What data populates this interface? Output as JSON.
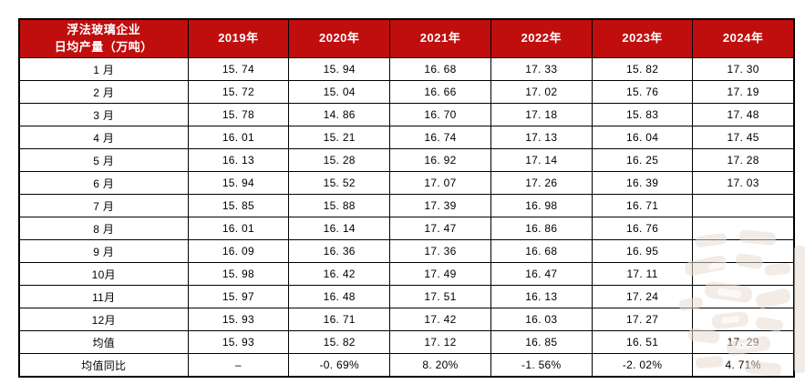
{
  "table": {
    "corner_header_line1": "浮法玻璃企业",
    "corner_header_line2": "日均产量（万吨）",
    "year_headers": [
      "2019年",
      "2020年",
      "2021年",
      "2022年",
      "2023年",
      "2024年"
    ],
    "rows": [
      {
        "label": "1 月",
        "values": [
          "15.74",
          "15.94",
          "16.68",
          "17.33",
          "15.82",
          "17.30"
        ]
      },
      {
        "label": "2 月",
        "values": [
          "15.72",
          "15.04",
          "16.66",
          "17.02",
          "15.76",
          "17.19"
        ]
      },
      {
        "label": "3 月",
        "values": [
          "15.78",
          "14.86",
          "16.70",
          "17.18",
          "15.83",
          "17.48"
        ]
      },
      {
        "label": "4 月",
        "values": [
          "16.01",
          "15.21",
          "16.74",
          "17.13",
          "16.04",
          "17.45"
        ]
      },
      {
        "label": "5 月",
        "values": [
          "16.13",
          "15.28",
          "16.92",
          "17.14",
          "16.25",
          "17.28"
        ]
      },
      {
        "label": "6 月",
        "values": [
          "15.94",
          "15.52",
          "17.07",
          "17.26",
          "16.39",
          "17.03"
        ]
      },
      {
        "label": "7 月",
        "values": [
          "15.85",
          "15.88",
          "17.39",
          "16.98",
          "16.71",
          ""
        ]
      },
      {
        "label": "8 月",
        "values": [
          "16.01",
          "16.14",
          "17.47",
          "16.86",
          "16.76",
          ""
        ]
      },
      {
        "label": "9 月",
        "values": [
          "16.09",
          "16.36",
          "17.36",
          "16.68",
          "16.95",
          ""
        ]
      },
      {
        "label": "10月",
        "values": [
          "15.98",
          "16.42",
          "17.49",
          "16.47",
          "17.11",
          ""
        ]
      },
      {
        "label": "11月",
        "values": [
          "15.97",
          "16.48",
          "17.51",
          "16.13",
          "17.24",
          ""
        ]
      },
      {
        "label": "12月",
        "values": [
          "15.93",
          "16.71",
          "17.42",
          "16.03",
          "17.27",
          ""
        ]
      },
      {
        "label": "均值",
        "values": [
          "15.93",
          "15.82",
          "17.12",
          "16.85",
          "16.51",
          "17.29"
        ]
      },
      {
        "label": "均值同比",
        "values": [
          "–",
          "-0.69%",
          "8.20%",
          "-1.56%",
          "-2.02%",
          "4.71%"
        ]
      }
    ]
  },
  "colors": {
    "header_bg": "#C00D0D",
    "header_text": "#FFFFFF",
    "grid_border": "#000000",
    "cell_text": "#000000",
    "watermark_tint": "#E8DCD2"
  },
  "chart_data": {
    "type": "table",
    "title": "浮法玻璃企业日均产量（万吨）",
    "categories": [
      "1月",
      "2月",
      "3月",
      "4月",
      "5月",
      "6月",
      "7月",
      "8月",
      "9月",
      "10月",
      "11月",
      "12月",
      "均值",
      "均值同比"
    ],
    "series": [
      {
        "name": "2019年",
        "monthly": [
          15.74,
          15.72,
          15.78,
          16.01,
          16.13,
          15.94,
          15.85,
          16.01,
          16.09,
          15.98,
          15.97,
          15.93
        ],
        "mean": 15.93,
        "mean_yoy": "–"
      },
      {
        "name": "2020年",
        "monthly": [
          15.94,
          15.04,
          14.86,
          15.21,
          15.28,
          15.52,
          15.88,
          16.14,
          16.36,
          16.42,
          16.48,
          16.71
        ],
        "mean": 15.82,
        "mean_yoy": "-0.69%"
      },
      {
        "name": "2021年",
        "monthly": [
          16.68,
          16.66,
          16.7,
          16.74,
          16.92,
          17.07,
          17.39,
          17.47,
          17.36,
          17.49,
          17.51,
          17.42
        ],
        "mean": 17.12,
        "mean_yoy": "8.20%"
      },
      {
        "name": "2022年",
        "monthly": [
          17.33,
          17.02,
          17.18,
          17.13,
          17.14,
          17.26,
          16.98,
          16.86,
          16.68,
          16.47,
          16.13,
          16.03
        ],
        "mean": 16.85,
        "mean_yoy": "-1.56%"
      },
      {
        "name": "2023年",
        "monthly": [
          15.82,
          15.76,
          15.83,
          16.04,
          16.25,
          16.39,
          16.71,
          16.76,
          16.95,
          17.11,
          17.24,
          17.27
        ],
        "mean": 16.51,
        "mean_yoy": "-2.02%"
      },
      {
        "name": "2024年",
        "monthly": [
          17.3,
          17.19,
          17.48,
          17.45,
          17.28,
          17.03,
          null,
          null,
          null,
          null,
          null,
          null
        ],
        "mean": 17.29,
        "mean_yoy": "4.71%"
      }
    ]
  }
}
